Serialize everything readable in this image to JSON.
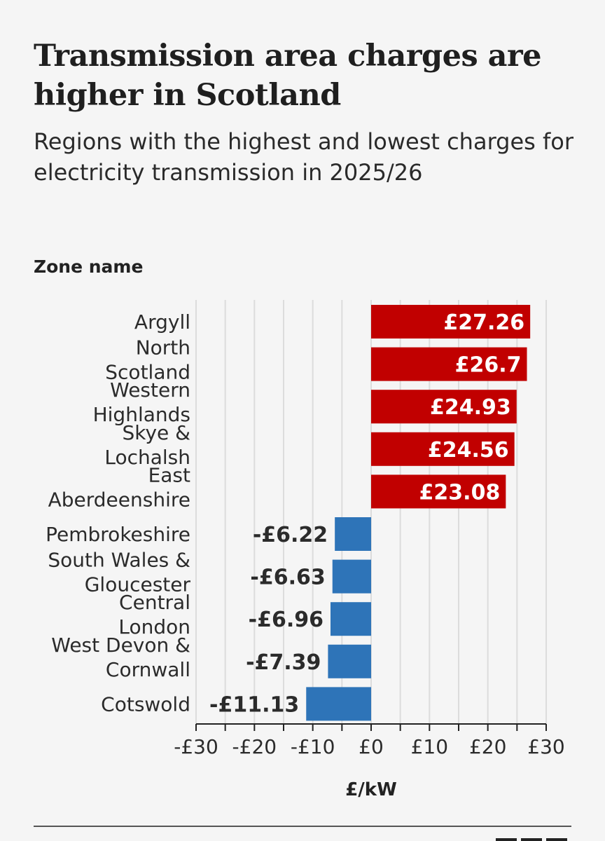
{
  "chart_data": {
    "type": "bar",
    "orientation": "horizontal",
    "title": "Transmission area charges are higher in Scotland",
    "subtitle": "Regions with the highest and lowest charges for electricity transmission in 2025/26",
    "ylabel": "Zone name",
    "xlabel": "£/kW",
    "xlim": [
      -30,
      30
    ],
    "xticks": [
      -30,
      -20,
      -10,
      0,
      10,
      20,
      30
    ],
    "xtick_labels": [
      "-£30",
      "-£20",
      "-£10",
      "£0",
      "£10",
      "£20",
      "£30"
    ],
    "grid": true,
    "categories": [
      [
        "Argyll"
      ],
      [
        "North",
        "Scotland"
      ],
      [
        "Western",
        "Highlands"
      ],
      [
        "Skye &",
        "Lochalsh"
      ],
      [
        "East",
        "Aberdeenshire"
      ],
      [
        "Pembrokeshire"
      ],
      [
        "South Wales &",
        "Gloucester"
      ],
      [
        "Central",
        "London"
      ],
      [
        "West Devon &",
        "Cornwall"
      ],
      [
        "Cotswold"
      ]
    ],
    "values": [
      27.26,
      26.7,
      24.93,
      24.56,
      23.08,
      -6.22,
      -6.63,
      -6.96,
      -7.39,
      -11.13
    ],
    "value_labels": [
      "£27.26",
      "£26.7",
      "£24.93",
      "£24.56",
      "£23.08",
      "-£6.22",
      "-£6.63",
      "-£6.96",
      "-£7.39",
      "-£11.13"
    ],
    "colors": {
      "positive": "#c10000",
      "negative": "#2e74b8",
      "grid": "#dcdcdc",
      "axis": "#222222"
    }
  }
}
